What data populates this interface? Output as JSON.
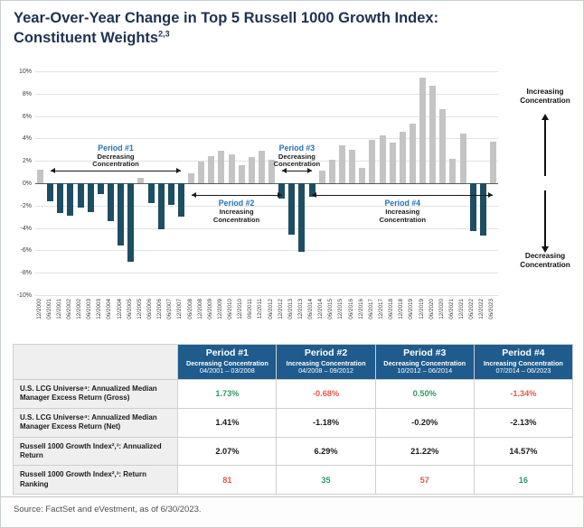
{
  "title": {
    "line1": "Year-Over-Year Change in Top 5 Russell 1000 Growth Index:",
    "line2": "Constituent Weights",
    "superscript": "2,3"
  },
  "chart_data": {
    "type": "bar",
    "title": "Year-Over-Year Change in Top 5 Russell 1000 Growth Index: Constituent Weights",
    "xlabel": "",
    "ylabel": "",
    "ylim": [
      -10,
      10
    ],
    "ytick_step": 2,
    "ytick_suffix": "%",
    "grid": true,
    "categories": [
      "12/2000",
      "06/2001",
      "12/2001",
      "06/2002",
      "12/2002",
      "06/2003",
      "12/2003",
      "06/2004",
      "12/2004",
      "06/2005",
      "12/2005",
      "06/2006",
      "12/2006",
      "06/2007",
      "12/2007",
      "06/2008",
      "12/2008",
      "06/2009",
      "12/2009",
      "06/2010",
      "12/2010",
      "06/2011",
      "12/2011",
      "06/2012",
      "12/2012",
      "06/2013",
      "12/2013",
      "06/2014",
      "12/2014",
      "06/2015",
      "12/2015",
      "06/2016",
      "12/2016",
      "06/2017",
      "12/2017",
      "06/2018",
      "12/2018",
      "06/2019",
      "12/2019",
      "06/2020",
      "12/2020",
      "06/2021",
      "12/2021",
      "06/2022",
      "12/2022",
      "06/2023"
    ],
    "values": [
      1.2,
      -1.6,
      -2.7,
      -2.9,
      -2.2,
      -2.6,
      -1.0,
      -3.4,
      -5.6,
      -7.0,
      0.5,
      -1.8,
      -4.1,
      -1.9,
      -3.0,
      0.9,
      1.9,
      2.4,
      2.9,
      2.6,
      1.6,
      2.3,
      2.9,
      2.1,
      -1.4,
      -4.6,
      -6.1,
      -1.2,
      1.1,
      2.1,
      3.4,
      3.0,
      1.4,
      3.9,
      4.3,
      3.6,
      4.6,
      5.3,
      9.4,
      8.7,
      6.6,
      2.2,
      4.4,
      -4.3,
      -4.7,
      3.7
    ],
    "colors": {
      "positive": "#c4c4c4",
      "negative": "#1d4e63"
    },
    "periods": [
      {
        "name": "Period #1",
        "description": "Decreasing Concentration",
        "start_index": 1,
        "end_index": 14,
        "side": "above"
      },
      {
        "name": "Period #2",
        "description": "Increasing Concentration",
        "start_index": 15,
        "end_index": 24,
        "side": "below"
      },
      {
        "name": "Period #3",
        "description": "Decreasing Concentration",
        "start_index": 24,
        "end_index": 27,
        "side": "above"
      },
      {
        "name": "Period #4",
        "description": "Increasing Concentration",
        "start_index": 27,
        "end_index": 45,
        "side": "below"
      }
    ],
    "right_annotations": {
      "top": "Increasing Concentration",
      "bottom": "Decreasing Concentration"
    }
  },
  "table": {
    "value_colors": {
      "green": "#2e9b62",
      "red": "#e05a4e",
      "black": "#1a1a1a"
    },
    "header": [
      {
        "title": "Period #1",
        "sub": "Decreasing Concentration",
        "dates": "04/2001 – 03/2008"
      },
      {
        "title": "Period #2",
        "sub": "Increasing Concentration",
        "dates": "04/2008 – 09/2012"
      },
      {
        "title": "Period #3",
        "sub": "Decreasing Concentration",
        "dates": "10/2012 – 06/2014"
      },
      {
        "title": "Period #4",
        "sub": "Increasing Concentration",
        "dates": "07/2014 – 06/2023"
      }
    ],
    "rows": [
      {
        "label": "U.S. LCG Universe⁴: Annualized Median Manager Excess Return (Gross)",
        "values": [
          "1.73%",
          "-0.68%",
          "0.50%",
          "-1.34%"
        ],
        "colors": [
          "green",
          "red",
          "green",
          "red"
        ]
      },
      {
        "label": "U.S. LCG Universe⁴: Annualized Median Manager Excess Return (Net)",
        "values": [
          "1.41%",
          "-1.18%",
          "-0.20%",
          "-2.13%"
        ],
        "colors": [
          "black",
          "black",
          "black",
          "black"
        ]
      },
      {
        "label": "Russell 1000 Growth Index²,³: Annualized Return",
        "values": [
          "2.07%",
          "6.29%",
          "21.22%",
          "14.57%"
        ],
        "colors": [
          "black",
          "black",
          "black",
          "black"
        ]
      },
      {
        "label": "Russell 1000 Growth Index²,³: Return Ranking",
        "values": [
          "81",
          "35",
          "57",
          "16"
        ],
        "colors": [
          "red",
          "green",
          "red",
          "green"
        ]
      }
    ]
  },
  "source": "Source: FactSet and eVestment, as of 6/30/2023."
}
